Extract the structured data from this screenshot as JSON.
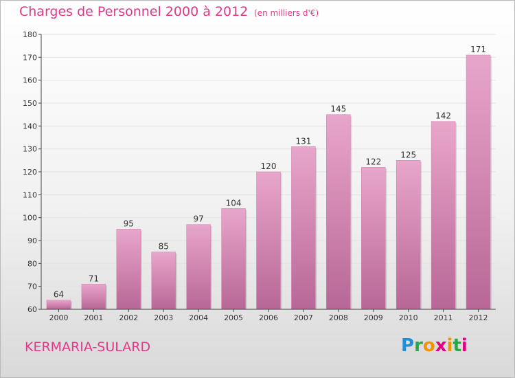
{
  "title": "Charges de Personnel 2000 à 2012",
  "subtitle": "(en milliers d'€)",
  "city": "KERMARIA-SULARD",
  "logo": {
    "letters": [
      "P",
      "r",
      "o",
      "x",
      "i",
      "t",
      "i"
    ],
    "colors": [
      "#1f8fd6",
      "#2aa64a",
      "#f39200",
      "#e4007f",
      "#f39200",
      "#2aa64a",
      "#e4007f"
    ]
  },
  "colors": {
    "bar": "#d47fae",
    "bar_light": "#e8a6cb",
    "bar_dark": "#b86796",
    "accent_text": "#e0388a",
    "axis": "#444444",
    "grid": "#e3e3e3"
  },
  "chart_data": {
    "type": "bar",
    "title": "Charges de Personnel 2000 à 2012",
    "subtitle": "(en milliers d'€)",
    "categories": [
      "2000",
      "2001",
      "2002",
      "2003",
      "2004",
      "2005",
      "2006",
      "2007",
      "2008",
      "2009",
      "2010",
      "2011",
      "2012"
    ],
    "values": [
      64,
      71,
      95,
      85,
      97,
      104,
      120,
      131,
      145,
      122,
      125,
      142,
      171
    ],
    "ylim": [
      60,
      180
    ],
    "yticks": [
      60,
      70,
      80,
      90,
      100,
      110,
      120,
      130,
      140,
      150,
      160,
      170,
      180
    ],
    "grid": true,
    "data_labels": true,
    "legend": "none"
  }
}
